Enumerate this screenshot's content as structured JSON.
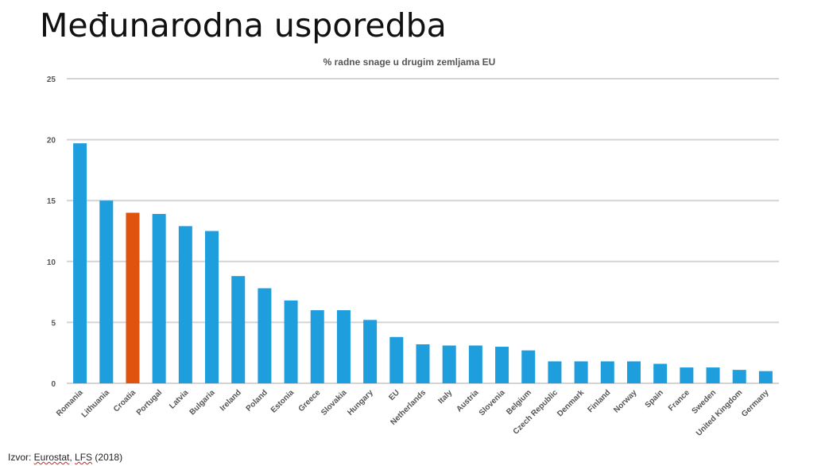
{
  "slide": {
    "title": "Međunarodna usporedba",
    "source_prefix": "Izvor: ",
    "source_eurostat": "Eurostat",
    "source_comma": ", ",
    "source_lfs": "LFS",
    "source_year": " (2018)"
  },
  "chart_data": {
    "type": "bar",
    "title": "% radne snage u drugim zemljama EU",
    "xlabel": "",
    "ylabel": "",
    "ylim": [
      0,
      25
    ],
    "yticks": [
      0,
      5,
      10,
      15,
      20,
      25
    ],
    "grid": true,
    "categories": [
      "Romania",
      "Lithuania",
      "Croatia",
      "Portugal",
      "Latvia",
      "Bulgaria",
      "Ireland",
      "Poland",
      "Estonia",
      "Greece",
      "Slovakia",
      "Hungary",
      "EU",
      "Netherlands",
      "Italy",
      "Austria",
      "Slovenia",
      "Belgium",
      "Czech Republic",
      "Denmark",
      "Finland",
      "Norway",
      "Spain",
      "France",
      "Sweden",
      "United Kingdom",
      "Germany"
    ],
    "values": [
      19.7,
      15.0,
      14.0,
      13.9,
      12.9,
      12.5,
      8.8,
      7.8,
      6.8,
      6.0,
      6.0,
      5.2,
      3.8,
      3.2,
      3.1,
      3.1,
      3.0,
      2.7,
      1.8,
      1.8,
      1.8,
      1.8,
      1.6,
      1.3,
      1.3,
      1.1,
      1.0
    ],
    "colors": {
      "default": "#1f9ede",
      "highlight": "#e0530f",
      "highlight_category": "Croatia",
      "grid": "#d4d4d4",
      "text": "#555555"
    }
  }
}
